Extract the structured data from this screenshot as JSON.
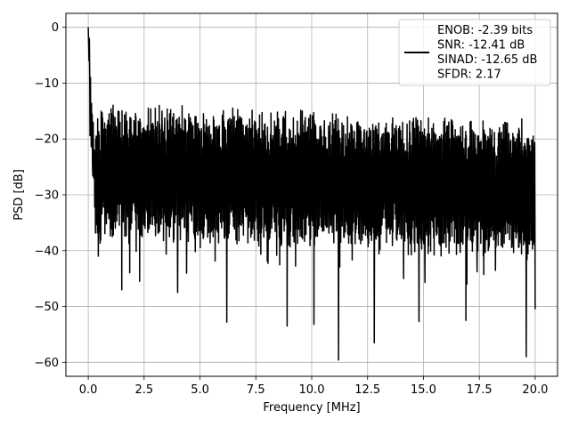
{
  "chart_data": {
    "type": "line",
    "xlabel": "Frequency [MHz]",
    "ylabel": "PSD [dB]",
    "xlim": [
      -1.0,
      21.0
    ],
    "ylim": [
      -62.5,
      2.5
    ],
    "xticks": [
      0.0,
      2.5,
      5.0,
      7.5,
      10.0,
      12.5,
      15.0,
      17.5,
      20.0
    ],
    "xtick_labels": [
      "0.0",
      "2.5",
      "5.0",
      "7.5",
      "10.0",
      "12.5",
      "15.0",
      "17.5",
      "20.0"
    ],
    "yticks": [
      0,
      -10,
      -20,
      -30,
      -40,
      -50,
      -60
    ],
    "ytick_labels": [
      "0",
      "−10",
      "−20",
      "−30",
      "−40",
      "−50",
      "−60"
    ],
    "grid": true,
    "legend_position": "top-right",
    "series": [
      {
        "name": "",
        "color": "#000000",
        "x_start": 0.0,
        "x_end": 20.0,
        "peak_value": 0,
        "typical_range": [
          -38,
          -18
        ],
        "min_value": -59.8,
        "notable_dips": [
          {
            "x": 0.45,
            "y": -41
          },
          {
            "x": 1.5,
            "y": -47
          },
          {
            "x": 2.3,
            "y": -45.5
          },
          {
            "x": 4.0,
            "y": -47.5
          },
          {
            "x": 6.2,
            "y": -52.8
          },
          {
            "x": 8.9,
            "y": -53.5
          },
          {
            "x": 10.1,
            "y": -53.2
          },
          {
            "x": 11.2,
            "y": -59.6
          },
          {
            "x": 12.8,
            "y": -56.5
          },
          {
            "x": 14.8,
            "y": -52.7
          },
          {
            "x": 16.9,
            "y": -52.5
          },
          {
            "x": 19.6,
            "y": -59.0
          },
          {
            "x": 20.0,
            "y": -50.5
          }
        ],
        "notable_peaks": [
          {
            "x": 0.0,
            "y": 0
          },
          {
            "x": 0.05,
            "y": -2
          },
          {
            "x": 0.1,
            "y": -9
          },
          {
            "x": 3.0,
            "y": -14.5
          },
          {
            "x": 3.3,
            "y": -15
          },
          {
            "x": 4.5,
            "y": -15.5
          },
          {
            "x": 5.6,
            "y": -16
          },
          {
            "x": 7.1,
            "y": -17.5
          },
          {
            "x": 9.5,
            "y": -18.5
          },
          {
            "x": 12.2,
            "y": -18.5
          },
          {
            "x": 16.3,
            "y": -18.5
          },
          {
            "x": 19.0,
            "y": -19
          }
        ]
      }
    ],
    "legend": {
      "line_color": "#000000",
      "entries": [
        "ENOB: -2.39 bits",
        "SNR: -12.41 dB",
        "SINAD: -12.65 dB",
        "SFDR: 2.17"
      ]
    }
  }
}
